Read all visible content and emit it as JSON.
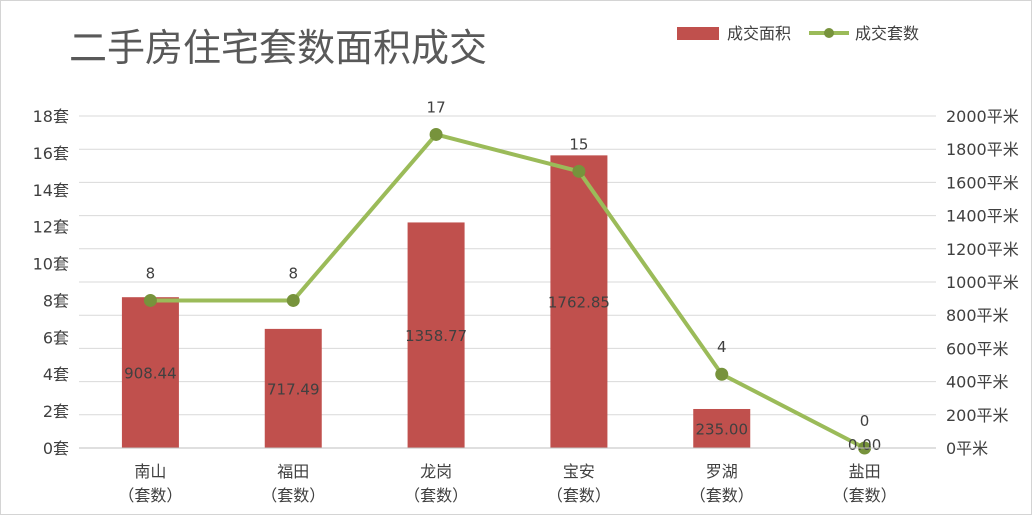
{
  "chart_data": {
    "type": "bar",
    "title": "二手房住宅套数面积成交",
    "categories": [
      "南山\n（套数）",
      "福田\n（套数）",
      "龙岗\n（套数）",
      "宝安\n（套数）",
      "罗湖\n（套数）",
      "盐田\n（套数）"
    ],
    "series": [
      {
        "name": "成交面积",
        "kind": "bar",
        "axis": "right",
        "color": "#c0504d",
        "values": [
          908.44,
          717.49,
          1358.77,
          1762.85,
          235.0,
          0.0
        ],
        "labels": [
          "908.44",
          "717.49",
          "1358.77",
          "1762.85",
          "235.00",
          "0.00"
        ]
      },
      {
        "name": "成交套数",
        "kind": "line",
        "axis": "left",
        "color": "#9bbb59",
        "values": [
          8,
          8,
          17,
          15,
          4,
          0
        ],
        "labels": [
          "8",
          "8",
          "17",
          "15",
          "4",
          "0"
        ]
      }
    ],
    "y_left": {
      "min": 0,
      "max": 18,
      "ticks": [
        "0套",
        "2套",
        "4套",
        "6套",
        "8套",
        "10套",
        "12套",
        "14套",
        "16套",
        "18套"
      ]
    },
    "y_right": {
      "min": 0,
      "max": 2000,
      "ticks": [
        "0平米",
        "200平米",
        "400平米",
        "600平米",
        "800平米",
        "1000平米",
        "1200平米",
        "1400平米",
        "1600平米",
        "1800平米",
        "2000平米"
      ]
    },
    "grid": true,
    "legend_position": "top-right"
  }
}
